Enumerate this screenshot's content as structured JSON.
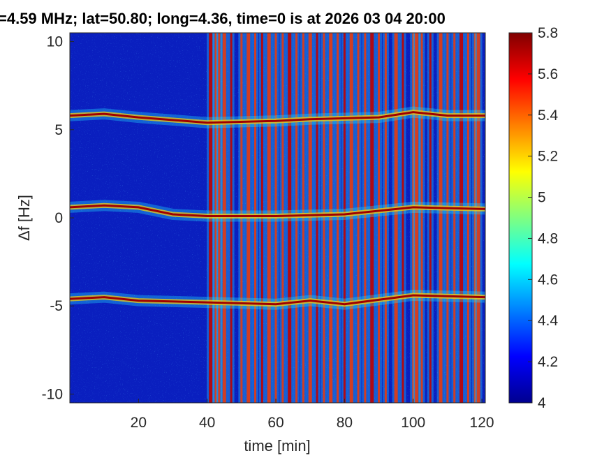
{
  "chart_data": {
    "type": "heatmap",
    "title": "=4.59 MHz;  lat=50.80; long=4.36, time=0 is at 2026 03 04 20:00",
    "xlabel": "time [min]",
    "ylabel": "Δf [Hz]",
    "xlim": [
      0,
      121
    ],
    "ylim": [
      -10.5,
      10.5
    ],
    "x_ticks": [
      20,
      40,
      60,
      80,
      100,
      120
    ],
    "x_tick_labels": [
      "20",
      "40",
      "60",
      "80",
      "100",
      "120"
    ],
    "y_ticks": [
      10,
      5,
      0,
      -5,
      -10
    ],
    "y_tick_labels": [
      "10",
      "5",
      "0",
      "-5",
      "-10"
    ],
    "colorbar": {
      "range": [
        4,
        5.8
      ],
      "ticks": [
        5.8,
        5.6,
        5.4,
        5.2,
        5,
        4.8,
        4.6,
        4.4,
        4.2,
        4
      ],
      "tick_labels": [
        "5.8",
        "5.6",
        "5.4",
        "5.2",
        "5",
        "4.8",
        "4.6",
        "4.4",
        "4.2",
        "4"
      ],
      "colormap": "jet"
    },
    "traces": [
      {
        "points": [
          [
            0,
            5.8
          ],
          [
            10,
            5.9
          ],
          [
            20,
            5.7
          ],
          [
            40,
            5.4
          ],
          [
            60,
            5.5
          ],
          [
            70,
            5.6
          ],
          [
            90,
            5.7
          ],
          [
            100,
            6.0
          ],
          [
            110,
            5.8
          ],
          [
            121,
            5.8
          ]
        ]
      },
      {
        "points": [
          [
            0,
            0.6
          ],
          [
            10,
            0.7
          ],
          [
            20,
            0.6
          ],
          [
            30,
            0.2
          ],
          [
            40,
            0.1
          ],
          [
            60,
            0.1
          ],
          [
            80,
            0.2
          ],
          [
            100,
            0.6
          ],
          [
            121,
            0.5
          ]
        ]
      },
      {
        "points": [
          [
            0,
            -4.6
          ],
          [
            10,
            -4.5
          ],
          [
            20,
            -4.7
          ],
          [
            40,
            -4.8
          ],
          [
            60,
            -4.9
          ],
          [
            70,
            -4.7
          ],
          [
            80,
            -4.9
          ],
          [
            100,
            -4.4
          ],
          [
            121,
            -4.5
          ]
        ]
      }
    ],
    "vertical_bands": [
      41,
      42.5,
      43.5,
      45,
      47,
      50,
      52,
      54,
      56,
      58,
      60,
      62,
      64,
      66,
      68,
      70,
      72,
      74,
      76,
      78,
      80,
      82,
      84,
      86,
      88,
      90,
      92,
      95,
      97,
      100,
      101,
      102.5,
      105,
      108,
      110,
      112,
      114,
      116,
      118,
      119
    ]
  },
  "colors": {
    "background": "#0a1fbf",
    "text": "#262626",
    "axis": "#262626"
  }
}
